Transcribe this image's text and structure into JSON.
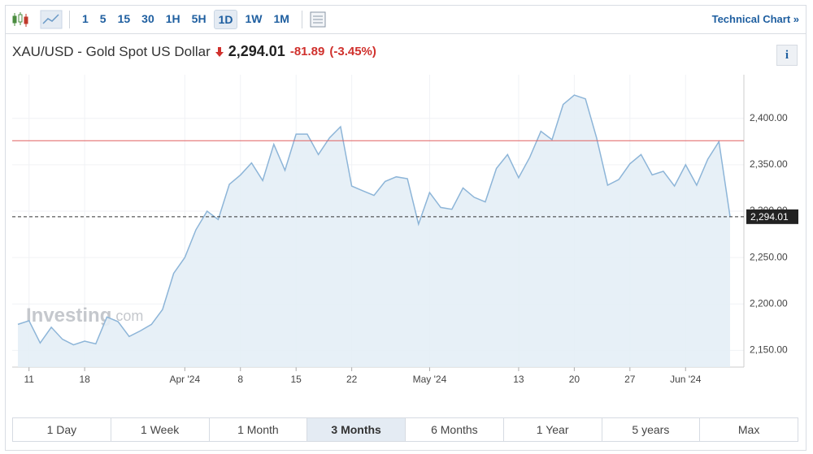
{
  "toolbar": {
    "intervals": [
      "1",
      "5",
      "15",
      "30",
      "1H",
      "5H",
      "1D",
      "1W",
      "1M"
    ],
    "selected_interval": "1D",
    "link": "Technical Chart »"
  },
  "header": {
    "title": "XAU/USD - Gold Spot US Dollar",
    "price": "2,294.01",
    "change": "-81.89",
    "change_percent": "(-3.45%)",
    "info": "i"
  },
  "watermark": {
    "brand": "Investing",
    "suffix": ".com"
  },
  "chart_data": {
    "type": "area",
    "categories": [
      null,
      "11",
      null,
      null,
      null,
      null,
      "18",
      null,
      null,
      null,
      null,
      null,
      null,
      null,
      null,
      "Apr '24",
      null,
      null,
      null,
      null,
      "8",
      null,
      null,
      null,
      null,
      "15",
      null,
      null,
      null,
      null,
      "22",
      null,
      null,
      null,
      null,
      null,
      null,
      "May '24",
      null,
      null,
      null,
      null,
      null,
      null,
      null,
      "13",
      null,
      null,
      null,
      null,
      "20",
      null,
      null,
      null,
      null,
      "27",
      null,
      null,
      null,
      null,
      "Jun '24",
      null,
      null,
      null,
      null
    ],
    "values": [
      2178,
      2182,
      2158,
      2175,
      2162,
      2156,
      2160,
      2157,
      2186,
      2181,
      2165,
      2171,
      2178,
      2194,
      2233,
      2250,
      2280,
      2300,
      2291,
      2329,
      2339,
      2352,
      2333,
      2372,
      2344,
      2383,
      2383,
      2361,
      2379,
      2391,
      2327,
      2322,
      2317,
      2332,
      2337,
      2335,
      2286,
      2320,
      2304,
      2302,
      2325,
      2315,
      2310,
      2346,
      2361,
      2336,
      2358,
      2386,
      2377,
      2415,
      2425,
      2421,
      2379,
      2328,
      2334,
      2351,
      2361,
      2339,
      2343,
      2327,
      2350,
      2328,
      2356,
      2375,
      2294.01
    ],
    "color": "#8db5d8",
    "fill": "#e4eef6",
    "ylim": [
      2132,
      2447
    ],
    "yticks": [
      {
        "value": 2150,
        "label": "2,150.00"
      },
      {
        "value": 2200,
        "label": "2,200.00"
      },
      {
        "value": 2250,
        "label": "2,250.00"
      },
      {
        "value": 2300,
        "label": "2,300.00"
      },
      {
        "value": 2350,
        "label": "2,350.00"
      },
      {
        "value": 2400,
        "label": "2,400.00"
      }
    ],
    "grid": true,
    "reference_line": {
      "value": 2375.9,
      "color": "#e06060"
    },
    "price_line": {
      "value": 2294.01,
      "label": "2,294.01"
    }
  },
  "ranges": {
    "buttons": [
      "1 Day",
      "1 Week",
      "1 Month",
      "3 Months",
      "6 Months",
      "1 Year",
      "5 years",
      "Max"
    ],
    "selected": "3 Months"
  }
}
